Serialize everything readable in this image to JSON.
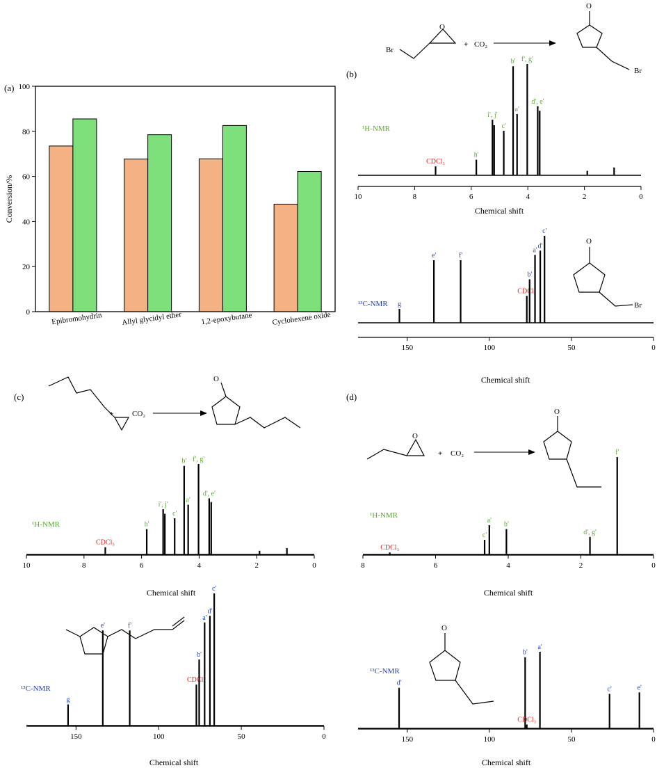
{
  "colors": {
    "bar_orange": "#f4b183",
    "bar_green": "#7ee07a",
    "green": "#5aa832",
    "blue": "#1f3fbf",
    "red": "#e0201c"
  },
  "labels": {
    "a": "(a)",
    "b": "(b)",
    "c": "(c)",
    "d": "(d)",
    "chemical_shift": "Chemical shift",
    "h_nmr": "¹H-NMR",
    "c_nmr": "¹³C-NMR",
    "cdcl3": "CDCl₃",
    "co2": "CO₂",
    "plus": "+",
    "br": "Br",
    "o": "O"
  },
  "chart_data": [
    {
      "panel": "(a)",
      "type": "bar",
      "categories": [
        "Epibromohydrin",
        "Allyl glycidyl ether",
        "1,2-epoxybutane",
        "Cyclohexene oxide"
      ],
      "series": [
        {
          "values": [
            73.5,
            67.7,
            67.8,
            47.7
          ]
        },
        {
          "values": [
            85.5,
            78.5,
            82.6,
            62.2
          ]
        }
      ],
      "ylabel": "Conversion/%",
      "ylim": [
        0,
        100
      ],
      "yticks": [
        0,
        20,
        40,
        60,
        80,
        100
      ]
    },
    {
      "panel": "(b)",
      "type": "line",
      "subtype": "1H-NMR",
      "xlabel": "Chemical shift",
      "xlim": [
        10,
        0
      ],
      "xticks": [
        10,
        8,
        6,
        4,
        2,
        0
      ],
      "peaks": [
        {
          "x": 7.26,
          "h": 0.08,
          "label": "CDCl₃",
          "color": "red"
        },
        {
          "x": 5.82,
          "h": 0.14,
          "label": "h'",
          "color": "green"
        },
        {
          "x": 5.25,
          "h": 0.5,
          "label": "i', j'",
          "color": "green"
        },
        {
          "x": 5.19,
          "h": 0.45
        },
        {
          "x": 4.85,
          "h": 0.4,
          "label": "c'",
          "color": "green"
        },
        {
          "x": 4.52,
          "h": 0.98,
          "label": "b'",
          "color": "green"
        },
        {
          "x": 4.38,
          "h": 0.55,
          "label": "a'",
          "color": "green"
        },
        {
          "x": 4.02,
          "h": 1.0,
          "label": "f', g'",
          "color": "green"
        },
        {
          "x": 3.65,
          "h": 0.62,
          "label": "d', e'",
          "color": "green"
        },
        {
          "x": 3.58,
          "h": 0.58
        },
        {
          "x": 1.9,
          "h": 0.04
        },
        {
          "x": 0.95,
          "h": 0.07
        }
      ]
    },
    {
      "panel": "(b)",
      "type": "line",
      "subtype": "13C-NMR",
      "xlabel": "Chemical shift",
      "xlim": [
        180,
        0
      ],
      "xticks": [
        150,
        100,
        50,
        0
      ],
      "peaks": [
        {
          "x": 154.8,
          "h": 0.16,
          "label": "g",
          "color": "blue"
        },
        {
          "x": 133.8,
          "h": 0.72,
          "label": "e'",
          "color": "blue"
        },
        {
          "x": 117.5,
          "h": 0.72,
          "label": "f'",
          "color": "blue"
        },
        {
          "x": 77.2,
          "h": 0.31,
          "label": "CDCl₃",
          "color": "red"
        },
        {
          "x": 75.5,
          "h": 0.5,
          "label": "b'",
          "color": "blue"
        },
        {
          "x": 72.2,
          "h": 0.78,
          "label": "a'",
          "color": "blue"
        },
        {
          "x": 69.0,
          "h": 0.83,
          "label": "d'",
          "color": "blue"
        },
        {
          "x": 66.4,
          "h": 1.0,
          "label": "c'",
          "color": "blue"
        }
      ]
    },
    {
      "panel": "(c)",
      "type": "line",
      "subtype": "1H-NMR",
      "xlabel": "Chemical shift",
      "xlim": [
        10,
        0
      ],
      "xticks": [
        10,
        8,
        6,
        4,
        2,
        0
      ],
      "peaks": [
        {
          "x": 7.26,
          "h": 0.08,
          "label": "CDCl₃",
          "color": "red"
        },
        {
          "x": 5.82,
          "h": 0.28,
          "label": "h'",
          "color": "green"
        },
        {
          "x": 5.25,
          "h": 0.5,
          "label": "i', j'",
          "color": "green"
        },
        {
          "x": 5.19,
          "h": 0.45
        },
        {
          "x": 4.85,
          "h": 0.4,
          "label": "c'",
          "color": "green"
        },
        {
          "x": 4.52,
          "h": 0.98,
          "label": "b'",
          "color": "green"
        },
        {
          "x": 4.38,
          "h": 0.55,
          "label": "a'",
          "color": "green"
        },
        {
          "x": 4.02,
          "h": 1.0,
          "label": "f', g'",
          "color": "green"
        },
        {
          "x": 3.65,
          "h": 0.62,
          "label": "d', e'",
          "color": "green"
        },
        {
          "x": 3.58,
          "h": 0.58
        },
        {
          "x": 1.9,
          "h": 0.04
        },
        {
          "x": 0.95,
          "h": 0.07
        }
      ]
    },
    {
      "panel": "(c)",
      "type": "line",
      "subtype": "13C-NMR",
      "xlabel": "Chemical shift",
      "xlim": [
        180,
        0
      ],
      "xticks": [
        150,
        100,
        50,
        0
      ],
      "peaks": [
        {
          "x": 154.8,
          "h": 0.16,
          "label": "g",
          "color": "blue"
        },
        {
          "x": 133.8,
          "h": 0.72,
          "label": "e'",
          "color": "blue"
        },
        {
          "x": 117.5,
          "h": 0.72,
          "label": "f'",
          "color": "blue"
        },
        {
          "x": 77.2,
          "h": 0.31,
          "label": "CDCl₃",
          "color": "red"
        },
        {
          "x": 75.5,
          "h": 0.5,
          "label": "b'",
          "color": "blue"
        },
        {
          "x": 72.2,
          "h": 0.78,
          "label": "a'",
          "color": "blue"
        },
        {
          "x": 69.0,
          "h": 0.83,
          "label": "d'",
          "color": "blue"
        },
        {
          "x": 66.4,
          "h": 1.0,
          "label": "c'",
          "color": "blue"
        }
      ]
    },
    {
      "panel": "(d)",
      "type": "line",
      "subtype": "1H-NMR",
      "xlabel": "Chemical shift",
      "xlim": [
        8,
        0
      ],
      "xticks": [
        8,
        6,
        4,
        2,
        0
      ],
      "peaks": [
        {
          "x": 7.26,
          "h": 0.02,
          "label": "CDCl₃",
          "color": "red"
        },
        {
          "x": 4.65,
          "h": 0.15,
          "label": "c'",
          "color": "green"
        },
        {
          "x": 4.52,
          "h": 0.3,
          "label": "a'",
          "color": "green"
        },
        {
          "x": 4.05,
          "h": 0.26,
          "label": "b'",
          "color": "green"
        },
        {
          "x": 1.75,
          "h": 0.18,
          "label": "d', g'",
          "color": "green"
        },
        {
          "x": 1.0,
          "h": 1.0,
          "label": "f'",
          "color": "green"
        }
      ]
    },
    {
      "panel": "(d)",
      "type": "line",
      "subtype": "13C-NMR",
      "xlabel": "Chemical shift",
      "xlim": [
        180,
        0
      ],
      "xticks": [
        150,
        100,
        50,
        0
      ],
      "peaks": [
        {
          "x": 155.0,
          "h": 0.53,
          "label": "d'",
          "color": "blue"
        },
        {
          "x": 78.2,
          "h": 0.93,
          "label": "b'",
          "color": "blue"
        },
        {
          "x": 77.2,
          "h": 0.05,
          "label": "CDCl₃",
          "color": "red"
        },
        {
          "x": 69.2,
          "h": 1.0,
          "label": "a'",
          "color": "blue"
        },
        {
          "x": 26.8,
          "h": 0.45,
          "label": "c'",
          "color": "blue"
        },
        {
          "x": 8.6,
          "h": 0.47,
          "label": "e'",
          "color": "blue"
        }
      ]
    }
  ]
}
